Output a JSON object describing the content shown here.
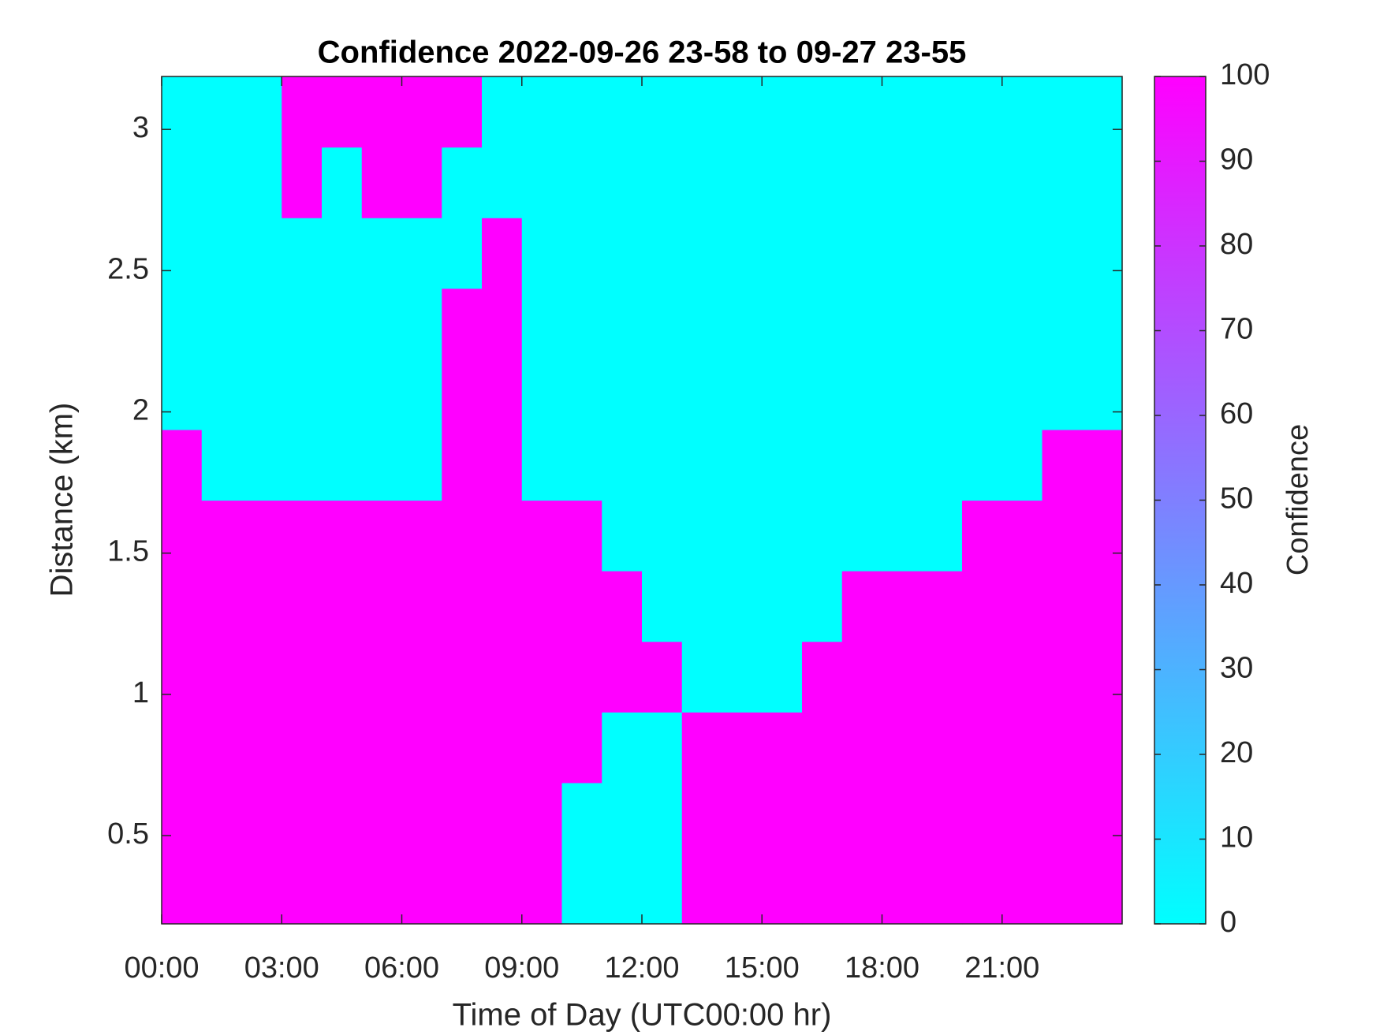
{
  "chart_data": {
    "type": "heatmap",
    "title": "Confidence 2022-09-26 23-58 to 09-27 23-55",
    "x_label": "Time of Day (UTC00:00 hr)",
    "y_label": "Distance (km)",
    "colorbar_label": "Confidence",
    "colormap": [
      "#00ffff",
      "#ff00ff"
    ],
    "x": [
      0.5,
      1.5,
      2.5,
      3.5,
      4.5,
      5.5,
      6.5,
      7.5,
      8.5,
      9.5,
      10.5,
      11.5,
      12.5,
      13.5,
      14.5,
      15.5,
      16.5,
      17.5,
      18.5,
      19.5,
      20.5,
      21.5,
      22.5,
      23.5
    ],
    "y": [
      0.3125,
      0.5625,
      0.8125,
      1.0625,
      1.3125,
      1.5625,
      1.8125,
      2.0625,
      2.3125,
      2.5625,
      2.8125,
      3.0625
    ],
    "values": [
      [
        100,
        100,
        100,
        100,
        100,
        100,
        100,
        100,
        100,
        100,
        0,
        0,
        0,
        100,
        100,
        100,
        100,
        100,
        100,
        100,
        100,
        100,
        100,
        100
      ],
      [
        100,
        100,
        100,
        100,
        100,
        100,
        100,
        100,
        100,
        100,
        0,
        0,
        0,
        100,
        100,
        100,
        100,
        100,
        100,
        100,
        100,
        100,
        100,
        100
      ],
      [
        100,
        100,
        100,
        100,
        100,
        100,
        100,
        100,
        100,
        100,
        100,
        0,
        0,
        100,
        100,
        100,
        100,
        100,
        100,
        100,
        100,
        100,
        100,
        100
      ],
      [
        100,
        100,
        100,
        100,
        100,
        100,
        100,
        100,
        100,
        100,
        100,
        100,
        100,
        0,
        0,
        0,
        100,
        100,
        100,
        100,
        100,
        100,
        100,
        100
      ],
      [
        100,
        100,
        100,
        100,
        100,
        100,
        100,
        100,
        100,
        100,
        100,
        100,
        0,
        0,
        0,
        0,
        0,
        100,
        100,
        100,
        100,
        100,
        100,
        100
      ],
      [
        100,
        100,
        100,
        100,
        100,
        100,
        100,
        100,
        100,
        100,
        100,
        0,
        0,
        0,
        0,
        0,
        0,
        0,
        0,
        0,
        100,
        100,
        100,
        100
      ],
      [
        100,
        0,
        0,
        0,
        0,
        0,
        0,
        100,
        100,
        0,
        0,
        0,
        0,
        0,
        0,
        0,
        0,
        0,
        0,
        0,
        0,
        0,
        100,
        100
      ],
      [
        0,
        0,
        0,
        0,
        0,
        0,
        0,
        100,
        100,
        0,
        0,
        0,
        0,
        0,
        0,
        0,
        0,
        0,
        0,
        0,
        0,
        0,
        0,
        0
      ],
      [
        0,
        0,
        0,
        0,
        0,
        0,
        0,
        100,
        100,
        0,
        0,
        0,
        0,
        0,
        0,
        0,
        0,
        0,
        0,
        0,
        0,
        0,
        0,
        0
      ],
      [
        0,
        0,
        0,
        0,
        0,
        0,
        0,
        0,
        100,
        0,
        0,
        0,
        0,
        0,
        0,
        0,
        0,
        0,
        0,
        0,
        0,
        0,
        0,
        0
      ],
      [
        0,
        0,
        0,
        100,
        0,
        100,
        100,
        0,
        0,
        0,
        0,
        0,
        0,
        0,
        0,
        0,
        0,
        0,
        0,
        0,
        0,
        0,
        0,
        0
      ],
      [
        0,
        0,
        0,
        100,
        100,
        100,
        100,
        100,
        0,
        0,
        0,
        0,
        0,
        0,
        0,
        0,
        0,
        0,
        0,
        0,
        0,
        0,
        0,
        0
      ]
    ],
    "xlim": [
      0,
      24
    ],
    "ylim": [
      0.1875,
      3.1875
    ],
    "xticks": [
      {
        "value": 0,
        "label": "00:00"
      },
      {
        "value": 3,
        "label": "03:00"
      },
      {
        "value": 6,
        "label": "06:00"
      },
      {
        "value": 9,
        "label": "09:00"
      },
      {
        "value": 12,
        "label": "12:00"
      },
      {
        "value": 15,
        "label": "15:00"
      },
      {
        "value": 18,
        "label": "18:00"
      },
      {
        "value": 21,
        "label": "21:00"
      }
    ],
    "yticks": [
      0.5,
      1,
      1.5,
      2,
      2.5,
      3
    ],
    "clim": [
      0,
      100
    ],
    "cticks": [
      0,
      10,
      20,
      30,
      40,
      50,
      60,
      70,
      80,
      90,
      100
    ]
  }
}
